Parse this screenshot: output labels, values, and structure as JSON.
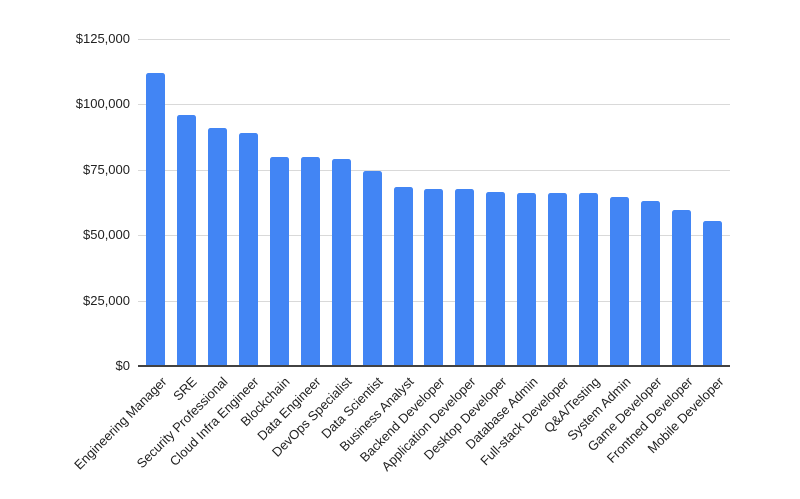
{
  "chart_data": {
    "type": "bar",
    "title": "",
    "xlabel": "",
    "ylabel": "",
    "categories": [
      "Engineering Manager",
      "SRE",
      "Security Professional",
      "Cloud Infra Engineer",
      "Blockchain",
      "Data Engineer",
      "DevOps Specialist",
      "Data Scientist",
      "Business Analyst",
      "Backend Developer",
      "Application Developer",
      "Desktop Developer",
      "Database Admin",
      "Full-stack Developer",
      "Q&A/Testing",
      "System Admin",
      "Game Developer",
      "Frontned Developer",
      "Mobile Developer"
    ],
    "values": [
      112000,
      96000,
      91000,
      89000,
      80000,
      80000,
      79000,
      74500,
      68500,
      67500,
      67500,
      66500,
      66000,
      66000,
      66000,
      64500,
      63000,
      59500,
      55500
    ],
    "y_tick_labels": [
      "$125,000",
      "$100,000",
      "$75,000",
      "$50,000",
      "$25,000",
      "$0"
    ],
    "y_tick_values": [
      125000,
      100000,
      75000,
      50000,
      25000,
      0
    ],
    "ylim": [
      0,
      125000
    ],
    "grid": "horizontal",
    "legend": "none",
    "x_label_rotation_deg": -45,
    "colors": {
      "bar_fill": "#4285F4",
      "gridline": "#d9d9d9",
      "baseline": "#424242",
      "axis_text": "#222222",
      "background": "#ffffff"
    }
  }
}
